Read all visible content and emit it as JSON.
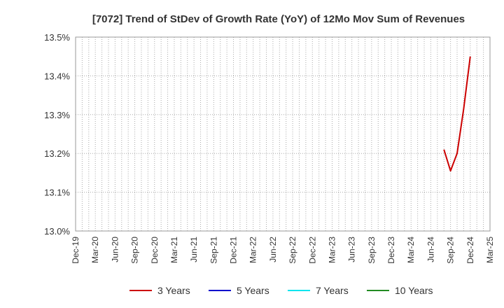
{
  "chart_data": {
    "type": "line",
    "title": "[7072]  Trend of StDev of Growth Rate (YoY) of 12Mo Mov Sum of Revenues",
    "xlabel": "",
    "ylabel": "",
    "x_ticks": [
      "Dec-19",
      "Mar-20",
      "Jun-20",
      "Sep-20",
      "Dec-20",
      "Mar-21",
      "Jun-21",
      "Sep-21",
      "Dec-21",
      "Mar-22",
      "Jun-22",
      "Sep-22",
      "Dec-22",
      "Mar-23",
      "Jun-23",
      "Sep-23",
      "Dec-23",
      "Mar-24",
      "Jun-24",
      "Sep-24",
      "Dec-24",
      "Mar-25"
    ],
    "x_start": "2019-12",
    "x_end": "2025-03",
    "y_ticks": [
      "13.0%",
      "13.1%",
      "13.2%",
      "13.3%",
      "13.4%",
      "13.5%"
    ],
    "ylim": [
      13.0,
      13.5
    ],
    "grid": true,
    "legend_position": "bottom",
    "series": [
      {
        "name": "3 Years",
        "color": "#cc0000",
        "points": [
          {
            "x": "2024-08",
            "y": 13.21
          },
          {
            "x": "2024-09",
            "y": 13.155
          },
          {
            "x": "2024-10",
            "y": 13.2
          },
          {
            "x": "2024-11",
            "y": 13.315
          },
          {
            "x": "2024-12",
            "y": 13.45
          }
        ]
      },
      {
        "name": "5 Years",
        "color": "#0000cc",
        "points": []
      },
      {
        "name": "7 Years",
        "color": "#00e5ee",
        "points": []
      },
      {
        "name": "10 Years",
        "color": "#228b22",
        "points": []
      }
    ]
  }
}
